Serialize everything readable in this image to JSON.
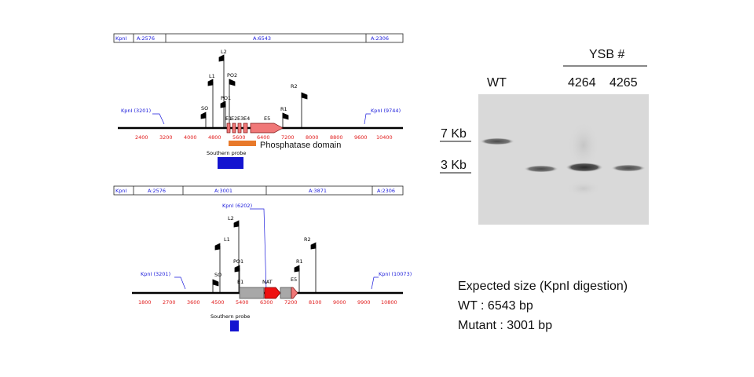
{
  "wt_map": {
    "fragments": [
      "KpnI",
      "A:2576",
      "A:6543",
      "A:2306"
    ],
    "sites": [
      "KpnI (3201)",
      "KpnI (9744)"
    ],
    "scale": [
      "2400",
      "3200",
      "4000",
      "4800",
      "5600",
      "6400",
      "7200",
      "8000",
      "8800",
      "9600",
      "10400"
    ],
    "primers": [
      "L2",
      "L1",
      "PO2",
      "R2",
      "PO1",
      "SO",
      "R1"
    ],
    "exons": [
      "E1",
      "E2",
      "E3",
      "E4",
      "E5"
    ],
    "domain_label": "Phosphatase domain",
    "probe_label": "Southern probe"
  },
  "mut_map": {
    "fragments": [
      "KpnI",
      "A:2576",
      "A:3001",
      "A:3871",
      "A:2306"
    ],
    "sites": [
      "KpnI (6202)",
      "KpnI (3201)",
      "KpnI (10073)"
    ],
    "scale": [
      "1800",
      "2700",
      "3600",
      "4500",
      "5400",
      "6300",
      "7200",
      "8100",
      "9000",
      "9900",
      "10800"
    ],
    "primers": [
      "L2",
      "L1",
      "PO1",
      "SO",
      "R2",
      "R1"
    ],
    "features": [
      "E1",
      "NAT",
      "E5"
    ],
    "probe_label": "Southern probe"
  },
  "gel": {
    "group_label": "YSB #",
    "lanes": [
      "WT",
      "4264",
      "4265"
    ],
    "markers": [
      "7 Kb",
      "3 Kb"
    ]
  },
  "expected": {
    "title": "Expected size (KpnI digestion)",
    "wt": "WT : 6543 bp",
    "mutant": "Mutant : 3001 bp"
  },
  "colors": {
    "map_text": "#1a1adb",
    "scale_text": "#e01818",
    "exon_fill": "#f07878",
    "domain_bar": "#e8792a",
    "probe": "#1414d0",
    "nat_fill": "#ee1111",
    "deletion_fill": "#a8a8a8"
  }
}
